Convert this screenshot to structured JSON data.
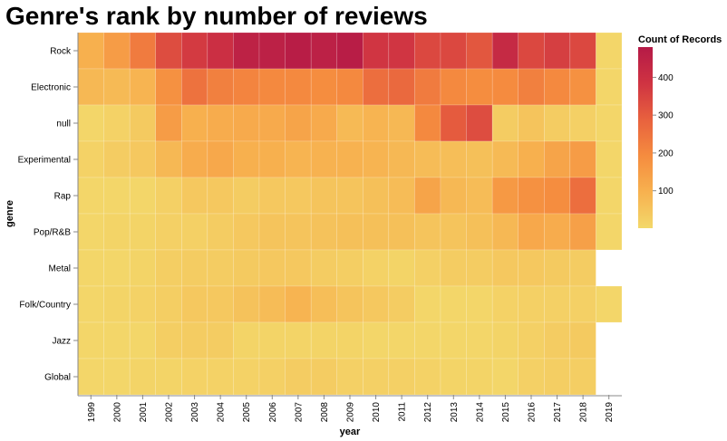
{
  "chart_data": {
    "type": "heatmap",
    "title": "Genre's rank by number of reviews",
    "xlabel": "year",
    "ylabel": "genre",
    "x": [
      "1999",
      "2000",
      "2001",
      "2002",
      "2003",
      "2004",
      "2005",
      "2006",
      "2007",
      "2008",
      "2009",
      "2010",
      "2011",
      "2012",
      "2013",
      "2014",
      "2015",
      "2016",
      "2017",
      "2018",
      "2019"
    ],
    "y": [
      "Rock",
      "Electronic",
      "null",
      "Experimental",
      "Rap",
      "Pop/R&B",
      "Metal",
      "Folk/Country",
      "Jazz",
      "Global"
    ],
    "values": [
      [
        100,
        150,
        230,
        330,
        370,
        400,
        450,
        455,
        470,
        455,
        470,
        380,
        380,
        340,
        340,
        310,
        420,
        340,
        360,
        340,
        5
      ],
      [
        80,
        75,
        90,
        180,
        250,
        220,
        210,
        200,
        200,
        190,
        200,
        260,
        270,
        230,
        200,
        190,
        195,
        220,
        200,
        180,
        5
      ],
      [
        5,
        15,
        35,
        150,
        100,
        110,
        115,
        115,
        130,
        115,
        75,
        90,
        80,
        200,
        300,
        330,
        30,
        50,
        30,
        20,
        5
      ],
      [
        15,
        30,
        40,
        80,
        110,
        120,
        100,
        100,
        90,
        95,
        95,
        90,
        80,
        70,
        65,
        60,
        75,
        100,
        130,
        150,
        5
      ],
      [
        5,
        5,
        5,
        20,
        40,
        40,
        30,
        40,
        40,
        50,
        50,
        60,
        70,
        130,
        80,
        70,
        160,
        180,
        190,
        260,
        5
      ],
      [
        5,
        10,
        10,
        20,
        20,
        30,
        40,
        50,
        50,
        55,
        60,
        60,
        60,
        50,
        50,
        60,
        80,
        120,
        110,
        140,
        5
      ],
      [
        5,
        5,
        10,
        25,
        30,
        30,
        35,
        40,
        40,
        30,
        25,
        15,
        10,
        20,
        30,
        30,
        40,
        40,
        35,
        30,
        null
      ],
      [
        5,
        10,
        15,
        25,
        40,
        40,
        55,
        70,
        90,
        65,
        50,
        40,
        30,
        5,
        5,
        5,
        15,
        20,
        20,
        20,
        5
      ],
      [
        5,
        5,
        5,
        25,
        30,
        30,
        10,
        10,
        10,
        10,
        10,
        5,
        5,
        5,
        5,
        5,
        10,
        20,
        30,
        35,
        null
      ],
      [
        5,
        5,
        10,
        10,
        15,
        15,
        15,
        20,
        30,
        30,
        20,
        20,
        20,
        15,
        10,
        10,
        5,
        20,
        25,
        25,
        null
      ]
    ],
    "legend": {
      "title": "Count of Records",
      "ticks": [
        100,
        200,
        300,
        400
      ],
      "min": 1,
      "max": 480,
      "position": "top-right",
      "colors": [
        "#f3d86a",
        "#f7b14f",
        "#f58c3f",
        "#e8613e",
        "#cf3342",
        "#b51a47"
      ]
    }
  }
}
